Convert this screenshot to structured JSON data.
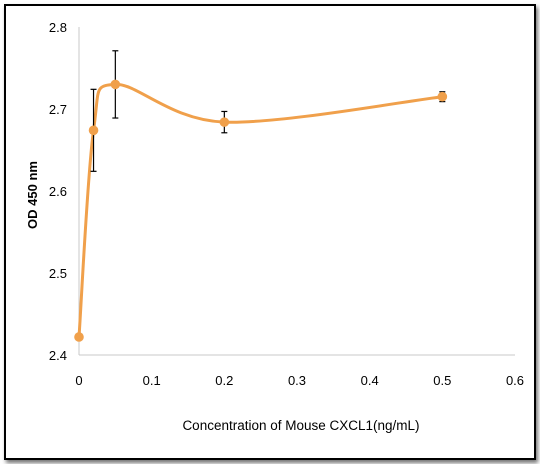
{
  "chart_data": {
    "type": "scatter",
    "title": "",
    "xlabel": "Concentration of Mouse CXCL1(ng/mL)",
    "ylabel": "OD 450 nm",
    "xlim": [
      0,
      0.6
    ],
    "ylim": [
      2.4,
      2.8
    ],
    "xticks": [
      "0",
      "0.1",
      "0.2",
      "0.3",
      "0.4",
      "0.5",
      "0.6"
    ],
    "yticks": [
      "2.4",
      "2.5",
      "2.6",
      "2.7",
      "2.8"
    ],
    "xtick_values": [
      0,
      0.1,
      0.2,
      0.3,
      0.4,
      0.5,
      0.6
    ],
    "ytick_values": [
      2.4,
      2.5,
      2.6,
      2.7,
      2.8
    ],
    "grid": false,
    "smooth_line": true,
    "series": [
      {
        "x": [
          0,
          0.02,
          0.05,
          0.2,
          0.5
        ],
        "y": [
          2.422,
          2.674,
          2.73,
          2.684,
          2.715
        ],
        "error": [
          0,
          0.05,
          0.041,
          0.013,
          0.006
        ],
        "color": "#f0a04b"
      }
    ]
  }
}
